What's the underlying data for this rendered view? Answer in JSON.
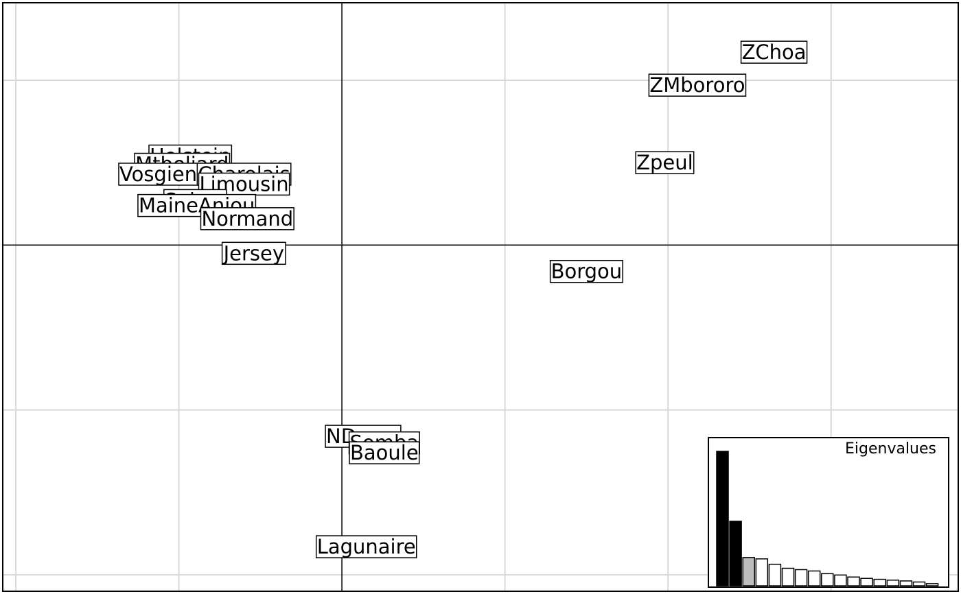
{
  "chart_data": {
    "type": "scatter",
    "title": "",
    "xlabel": "",
    "ylabel": "",
    "xlim": [
      -2.08,
      3.78
    ],
    "ylim": [
      -2.1,
      1.47
    ],
    "grid": true,
    "grid_spacing": 1,
    "points": [
      {
        "label": "ZChoa",
        "x": 2.65,
        "y": 1.17
      },
      {
        "label": "ZMbororo",
        "x": 2.18,
        "y": 0.97
      },
      {
        "label": "Zpeul",
        "x": 1.98,
        "y": 0.5
      },
      {
        "label": "Borgou",
        "x": 1.5,
        "y": -0.16
      },
      {
        "label": "Holstein",
        "x": -0.93,
        "y": 0.54
      },
      {
        "label": "Mtbeliard",
        "x": -0.98,
        "y": 0.49
      },
      {
        "label": "Vosgienne",
        "x": -1.05,
        "y": 0.43
      },
      {
        "label": "Charolais",
        "x": -0.6,
        "y": 0.43
      },
      {
        "label": "Limousin",
        "x": -0.6,
        "y": 0.37
      },
      {
        "label": "Salers",
        "x": -0.9,
        "y": 0.27
      },
      {
        "label": "MaineAnjou",
        "x": -0.89,
        "y": 0.24
      },
      {
        "label": "Normand",
        "x": -0.58,
        "y": 0.16
      },
      {
        "label": "Jersey",
        "x": -0.54,
        "y": -0.05
      },
      {
        "label": "NDama",
        "x": 0.13,
        "y": -1.16
      },
      {
        "label": "Somba",
        "x": 0.26,
        "y": -1.2
      },
      {
        "label": "Baoule",
        "x": 0.26,
        "y": -1.26
      },
      {
        "label": "Lagunaire",
        "x": 0.15,
        "y": -1.83
      }
    ],
    "inset": {
      "title": "Eigenvalues",
      "values": [
        1.0,
        0.48,
        0.21,
        0.2,
        0.16,
        0.13,
        0.12,
        0.11,
        0.09,
        0.08,
        0.065,
        0.055,
        0.048,
        0.042,
        0.036,
        0.028,
        0.016
      ],
      "colors": [
        "#000000",
        "#000000",
        "#bebebe",
        "#ffffff",
        "#ffffff",
        "#ffffff",
        "#ffffff",
        "#ffffff",
        "#ffffff",
        "#ffffff",
        "#ffffff",
        "#ffffff",
        "#ffffff",
        "#ffffff",
        "#ffffff",
        "#ffffff",
        "#ffffff"
      ]
    }
  }
}
